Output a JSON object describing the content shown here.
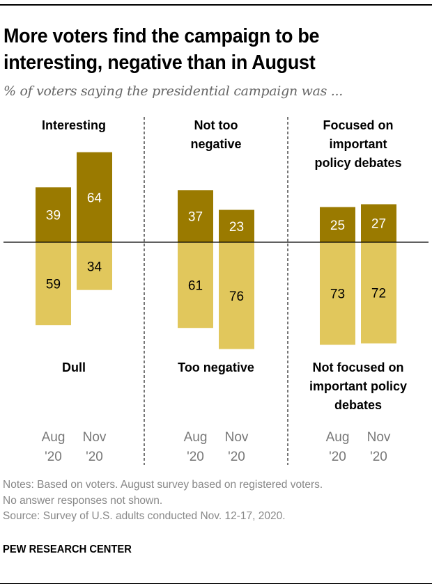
{
  "header": {
    "title_line1": "More voters find the campaign to be",
    "title_line2": "interesting, negative than in August",
    "subtitle": "% of voters saying the presidential campaign was ..."
  },
  "colors": {
    "positive": "#9a7a00",
    "negative": "#e1c75c",
    "positive_label": "#ffffff",
    "negative_label": "#000000",
    "divider": "#777777",
    "tick": "#777777"
  },
  "chart_data": {
    "type": "bar",
    "title": "More voters find the campaign to be interesting, negative than in August",
    "subtitle": "% of voters saying the presidential campaign was ...",
    "categories": [
      "Aug '20",
      "Nov '20"
    ],
    "category_lines": [
      [
        "Aug",
        "'20"
      ],
      [
        "Nov",
        "'20"
      ]
    ],
    "ylim": [
      -80,
      70
    ],
    "grid": false,
    "panels": [
      {
        "top_label": [
          "Interesting"
        ],
        "bottom_label": [
          "Dull"
        ],
        "series": [
          {
            "name": "Interesting",
            "values": [
              39,
              64
            ]
          },
          {
            "name": "Dull",
            "values": [
              59,
              34
            ]
          }
        ]
      },
      {
        "top_label": [
          "Not too",
          "negative"
        ],
        "bottom_label": [
          "Too negative"
        ],
        "series": [
          {
            "name": "Not too negative",
            "values": [
              37,
              23
            ]
          },
          {
            "name": "Too negative",
            "values": [
              61,
              76
            ]
          }
        ]
      },
      {
        "top_label": [
          "Focused on",
          "important",
          "policy debates"
        ],
        "bottom_label": [
          "Not focused on",
          "important policy",
          "debates"
        ],
        "series": [
          {
            "name": "Focused on important policy debates",
            "values": [
              25,
              27
            ]
          },
          {
            "name": "Not focused on important policy debates",
            "values": [
              73,
              72
            ]
          }
        ]
      }
    ]
  },
  "footer": {
    "notes_line1": "Notes: Based on voters. August survey based on registered voters.",
    "notes_line2": "No answer responses not shown.",
    "source": "Source: Survey of U.S. adults conducted Nov. 12-17, 2020.",
    "brand": "PEW RESEARCH CENTER"
  }
}
